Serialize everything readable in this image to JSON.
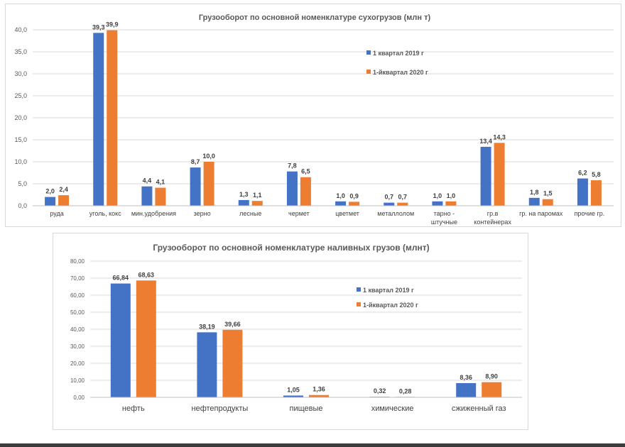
{
  "colors": {
    "series1": "#4472c4",
    "series2": "#ed7d31",
    "grid": "#d9d9d9",
    "text": "#595959"
  },
  "chart_data": [
    {
      "type": "bar",
      "title": "Грузооборот  по основной номенклатуре сухогрузов  (млн т)",
      "categories": [
        "руда",
        "уголь, кокс",
        "мин.удобрения",
        "зерно",
        "лесные",
        "чермет",
        "цветмет",
        "металлолом",
        "тарно -\nштучные",
        "гр.в\nконтейнерах",
        "гр. на паромах",
        "прочие гр."
      ],
      "series": [
        {
          "name": "1 квартал 2019 г",
          "values": [
            2.0,
            39.3,
            4.4,
            8.7,
            1.3,
            7.8,
            1.0,
            0.7,
            1.0,
            13.4,
            1.8,
            6.2
          ],
          "labels": [
            "2,0",
            "39,3",
            "4,4",
            "8,7",
            "1,3",
            "7,8",
            "1,0",
            "0,7",
            "1,0",
            "13,4",
            "1,8",
            "6,2"
          ]
        },
        {
          "name": "1-йквартал 2020 г",
          "values": [
            2.4,
            39.9,
            4.1,
            10.0,
            1.1,
            6.5,
            0.9,
            0.7,
            1.0,
            14.3,
            1.5,
            5.8
          ],
          "labels": [
            "2,4",
            "39,9",
            "4,1",
            "10,0",
            "1,1",
            "6,5",
            "0,9",
            "0,7",
            "1,0",
            "14,3",
            "1,5",
            "5,8"
          ]
        }
      ],
      "ylim": [
        0,
        40
      ],
      "yticks": [
        "0,0",
        "5,0",
        "10,0",
        "15,0",
        "20,0",
        "25,0",
        "30,0",
        "35,0",
        "40,0"
      ],
      "grid": true,
      "legend": "right"
    },
    {
      "type": "bar",
      "title": "Грузооборот по основной номенклатуре наливных грузов (млнт)",
      "categories": [
        "нефть",
        "нефтепродукты",
        "пищевые",
        "химические",
        "сжиженный газ"
      ],
      "series": [
        {
          "name": "1 квартал 2019 г",
          "values": [
            66.84,
            38.19,
            1.05,
            0.32,
            8.36
          ],
          "labels": [
            "66,84",
            "38,19",
            "1,05",
            "0,32",
            "8,36"
          ]
        },
        {
          "name": "1-йквартал 2020 г",
          "values": [
            68.63,
            39.66,
            1.36,
            0.28,
            8.9
          ],
          "labels": [
            "68,63",
            "39,66",
            "1,36",
            "0,28",
            "8,90"
          ]
        }
      ],
      "ylim": [
        0,
        80
      ],
      "yticks": [
        "0,00",
        "10,00",
        "20,00",
        "30,00",
        "40,00",
        "50,00",
        "60,00",
        "70,00",
        "80,00"
      ],
      "grid": true,
      "legend": "right"
    }
  ]
}
